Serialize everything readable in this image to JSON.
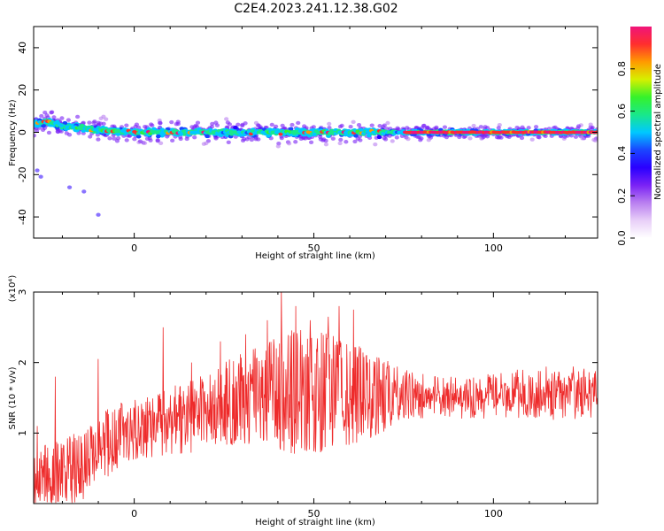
{
  "title": "C2E4.2023.241.12.38.G02",
  "colors": {
    "snr_line": "#ee2b2b",
    "colormap": [
      "#ffffff",
      "#e8cff8",
      "#b97ff0",
      "#7a22f5",
      "#2a00ff",
      "#1a46ff",
      "#00c8ff",
      "#19e88a",
      "#36f22a",
      "#d6f000",
      "#ff9a00",
      "#ff2e2e",
      "#f0147a"
    ]
  },
  "chart_data": [
    {
      "type": "heatmap",
      "name": "spectrogram",
      "xlabel": "Height of straight line (km)",
      "ylabel": "Frequency (Hz)",
      "xlim": [
        -28,
        129
      ],
      "ylim": [
        -50,
        50
      ],
      "x_ticks": [
        "0",
        "50",
        "100"
      ],
      "x_tick_values": [
        0,
        50,
        100
      ],
      "y_ticks": [
        "40",
        "20",
        "0",
        "-20",
        "-40"
      ],
      "y_tick_values": [
        40,
        20,
        0,
        -20,
        -40
      ],
      "colorbar": {
        "label": "Normalized spectral amplitude",
        "range": [
          0,
          1
        ],
        "ticks": [
          "0.0",
          "0.2",
          "0.4",
          "0.6",
          "0.8"
        ],
        "tick_values": [
          0.0,
          0.2,
          0.4,
          0.6,
          0.8
        ]
      },
      "ridge": {
        "frequency_hz": 0,
        "x_range": [
          -28,
          129
        ],
        "center_curve": [
          [
            -28,
            4
          ],
          [
            -24,
            5
          ],
          [
            -20,
            3
          ],
          [
            -15,
            2
          ],
          [
            -10,
            1
          ],
          [
            -5,
            0.5
          ],
          [
            0,
            0
          ],
          [
            50,
            0
          ],
          [
            129,
            0
          ]
        ],
        "peak_amplitude": 0.95,
        "smeared_tail": [
          [
            -27,
            -18
          ],
          [
            -26,
            -21
          ],
          [
            -18,
            -26
          ],
          [
            -14,
            -28
          ],
          [
            -10,
            -39
          ]
        ]
      }
    },
    {
      "type": "line",
      "name": "snr",
      "xlabel": "Height of straight line (km)",
      "ylabel": "SNR (10 * v/v)",
      "y_multiplier": "(x10⁴)",
      "xlim": [
        -28,
        129
      ],
      "ylim": [
        0,
        3
      ],
      "x_ticks": [
        "0",
        "50",
        "100"
      ],
      "x_tick_values": [
        0,
        50,
        100
      ],
      "y_ticks": [
        "1",
        "2",
        "3"
      ],
      "y_tick_values": [
        1,
        2,
        3
      ],
      "envelope": {
        "x": [
          -28,
          -25,
          -20,
          -15,
          -10,
          -5,
          0,
          5,
          10,
          15,
          20,
          25,
          30,
          35,
          40,
          45,
          50,
          55,
          60,
          65,
          70,
          75,
          80,
          85,
          90,
          95,
          100,
          105,
          110,
          115,
          120,
          125,
          129
        ],
        "low": [
          0.05,
          0.05,
          0.05,
          0.1,
          0.4,
          0.55,
          0.7,
          0.75,
          0.8,
          0.8,
          0.85,
          0.9,
          0.95,
          0.9,
          0.85,
          0.8,
          0.8,
          0.85,
          0.9,
          1.0,
          1.1,
          1.25,
          1.3,
          1.35,
          1.3,
          1.3,
          1.3,
          1.3,
          1.3,
          1.25,
          1.3,
          1.3,
          1.3
        ],
        "high": [
          0.6,
          0.7,
          0.75,
          0.9,
          1.15,
          1.25,
          1.35,
          1.4,
          1.5,
          1.6,
          1.7,
          1.85,
          2.0,
          2.1,
          2.25,
          2.4,
          2.3,
          2.3,
          2.2,
          2.0,
          1.9,
          1.8,
          1.7,
          1.65,
          1.65,
          1.65,
          1.7,
          1.75,
          1.75,
          1.8,
          1.8,
          1.8,
          1.8
        ]
      },
      "spikes": [
        [
          -27,
          1.1
        ],
        [
          -22,
          1.8
        ],
        [
          -16,
          0.9
        ],
        [
          -10,
          2.05
        ],
        [
          8,
          2.5
        ],
        [
          16,
          2.0
        ],
        [
          24,
          2.3
        ],
        [
          31,
          2.4
        ],
        [
          37,
          2.6
        ],
        [
          41,
          3.05
        ],
        [
          45,
          2.8
        ],
        [
          49,
          2.6
        ],
        [
          54,
          2.65
        ],
        [
          57,
          2.8
        ],
        [
          61,
          2.75
        ]
      ]
    }
  ]
}
